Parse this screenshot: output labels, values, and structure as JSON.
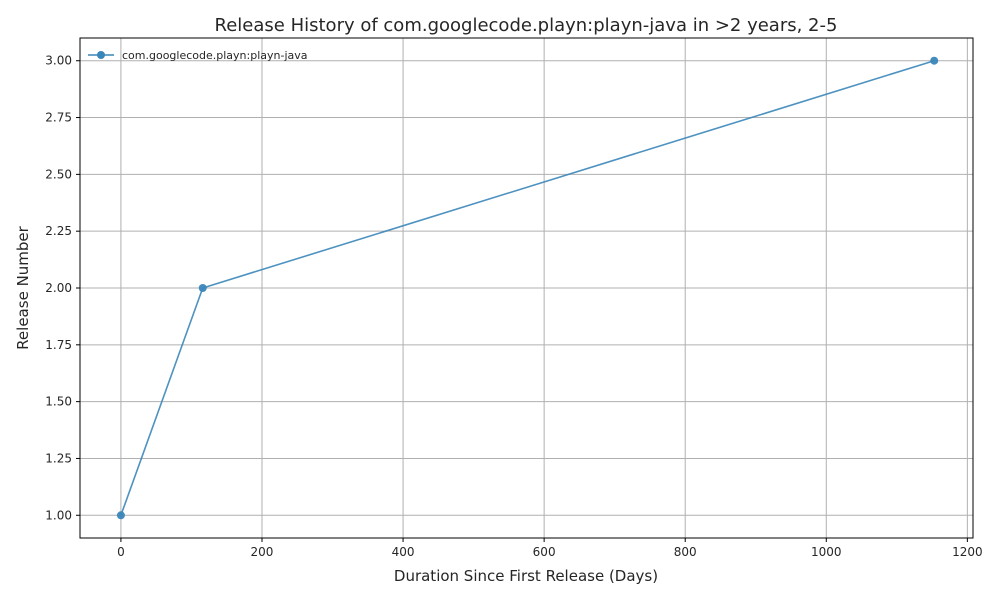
{
  "chart_data": {
    "type": "line",
    "title": "Release History of com.googlecode.playn:playn-java in >2 years, 2-5",
    "xlabel": "Duration Since First Release (Days)",
    "ylabel": "Release Number",
    "xlim": [
      -58,
      1208
    ],
    "ylim": [
      0.9,
      3.1
    ],
    "xticks": [
      0,
      200,
      400,
      600,
      800,
      1000,
      1200
    ],
    "yticks": [
      1.0,
      1.25,
      1.5,
      1.75,
      2.0,
      2.25,
      2.5,
      2.75,
      3.0
    ],
    "ytick_labels": [
      "1.00",
      "1.25",
      "1.50",
      "1.75",
      "2.00",
      "2.25",
      "2.50",
      "2.75",
      "3.00"
    ],
    "grid": true,
    "legend_position": "top-left",
    "series": [
      {
        "name": "com.googlecode.playn:playn-java",
        "color": "#3a86b9",
        "marker": "circle",
        "x": [
          0,
          116,
          1153
        ],
        "y": [
          1,
          2,
          3
        ]
      }
    ]
  }
}
